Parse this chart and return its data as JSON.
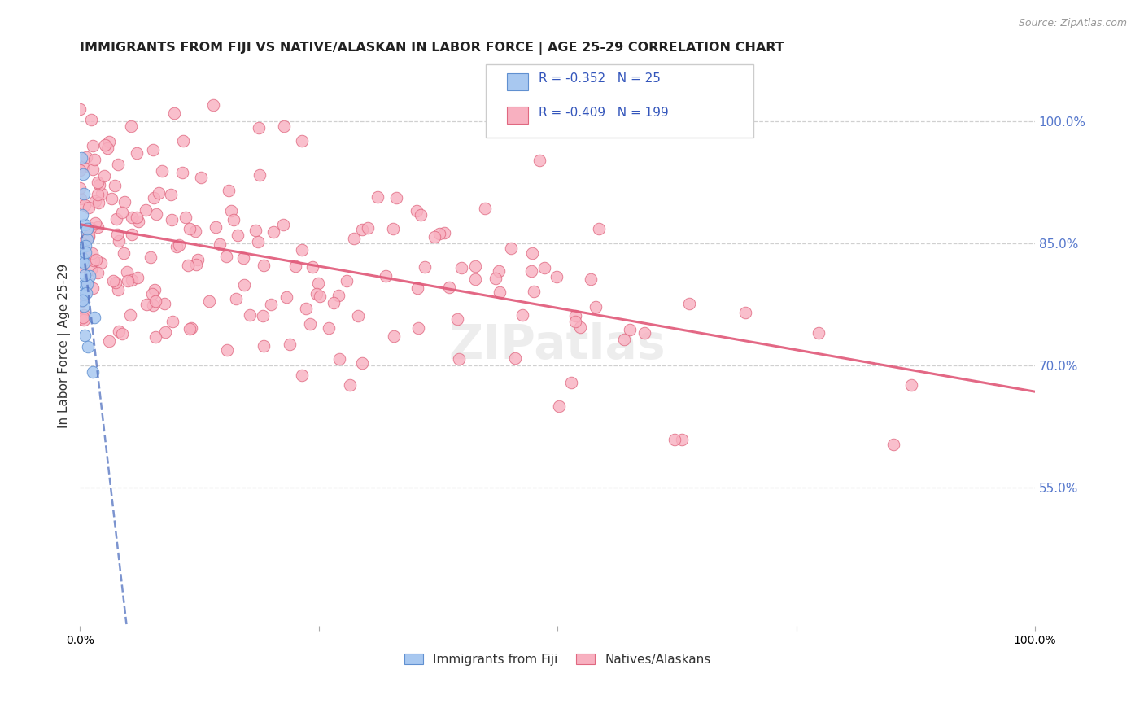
{
  "title": "IMMIGRANTS FROM FIJI VS NATIVE/ALASKAN IN LABOR FORCE | AGE 25-29 CORRELATION CHART",
  "source": "Source: ZipAtlas.com",
  "ylabel": "In Labor Force | Age 25-29",
  "xlim": [
    0.0,
    1.0
  ],
  "ylim": [
    0.38,
    1.07
  ],
  "right_yticks": [
    1.0,
    0.85,
    0.7,
    0.55
  ],
  "fiji_color": "#a8c8f0",
  "fiji_edge": "#6090d0",
  "native_color": "#f8b0c0",
  "native_edge": "#e06880",
  "trend_fiji_color": "#5070c0",
  "trend_native_color": "#e05878",
  "background": "#ffffff",
  "grid_color": "#d0d0d0",
  "title_color": "#222222",
  "source_color": "#999999",
  "right_tick_color": "#5577cc",
  "fiji_r": -0.352,
  "fiji_n": 25,
  "native_r": -0.409,
  "native_n": 199,
  "fiji_seed": 7,
  "native_seed": 13,
  "marker_size": 110
}
